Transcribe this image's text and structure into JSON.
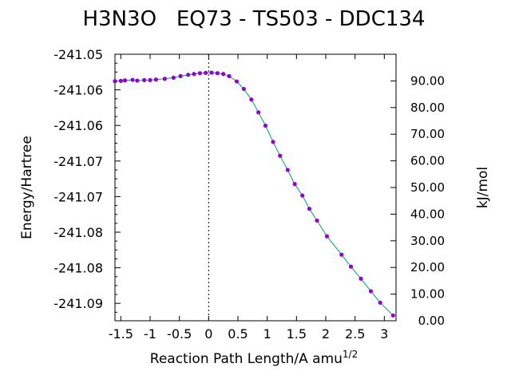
{
  "chart_data": {
    "type": "line",
    "title": "H3N3O   EQ73 - TS503 - DDC134",
    "xlabel": "Reaction Path Length/A amu",
    "xlabel_sup": "1/2",
    "ylabel": "Energy/Hartree",
    "y2label": "kJ/mol",
    "xlim": [
      -1.6,
      3.2
    ],
    "ylim": [
      -241.0945,
      -241.0509
    ],
    "y2lim": [
      0,
      100
    ],
    "x_ticks": [
      "-1.5",
      "-1",
      "-0.5",
      "0",
      "0.5",
      "1",
      "1.5",
      "2",
      "2.5",
      "3"
    ],
    "y_ticks": [
      "-241.05",
      "-241.06",
      "-241.06",
      "-241.07",
      "-241.07",
      "-241.08",
      "-241.08",
      "-241.09"
    ],
    "y2_ticks": [
      "0.00",
      "10.00",
      "20.00",
      "30.00",
      "40.00",
      "50.00",
      "60.00",
      "70.00",
      "80.00",
      "90.00"
    ],
    "ts_marker_x": 0,
    "line_color": "#009e73",
    "point_color": "#9400d3",
    "grid": false,
    "series": [
      {
        "x": [
          -1.6,
          -1.5,
          -1.43,
          -1.3,
          -1.22,
          -1.1,
          -1.0,
          -0.9,
          -0.75,
          -0.6,
          -0.48,
          -0.35,
          -0.25,
          -0.15,
          -0.05,
          0.05,
          0.15,
          0.25,
          0.35,
          0.48,
          0.6,
          0.73,
          0.85,
          0.97,
          1.1,
          1.22,
          1.35,
          1.47,
          1.6,
          1.72,
          1.85,
          2.02,
          2.27,
          2.43,
          2.6,
          2.77,
          2.93,
          3.15
        ],
        "y": [
          89.9,
          90.0,
          90.2,
          90.4,
          90.1,
          90.3,
          90.3,
          90.5,
          90.8,
          91.2,
          91.8,
          92.3,
          92.6,
          92.9,
          93.0,
          93.1,
          92.9,
          92.6,
          91.8,
          89.8,
          87.0,
          83.0,
          78.2,
          73.2,
          67.1,
          61.9,
          56.6,
          51.3,
          47.0,
          42.0,
          37.6,
          31.7,
          24.8,
          20.3,
          15.8,
          11.1,
          6.8,
          2.0
        ]
      }
    ]
  }
}
